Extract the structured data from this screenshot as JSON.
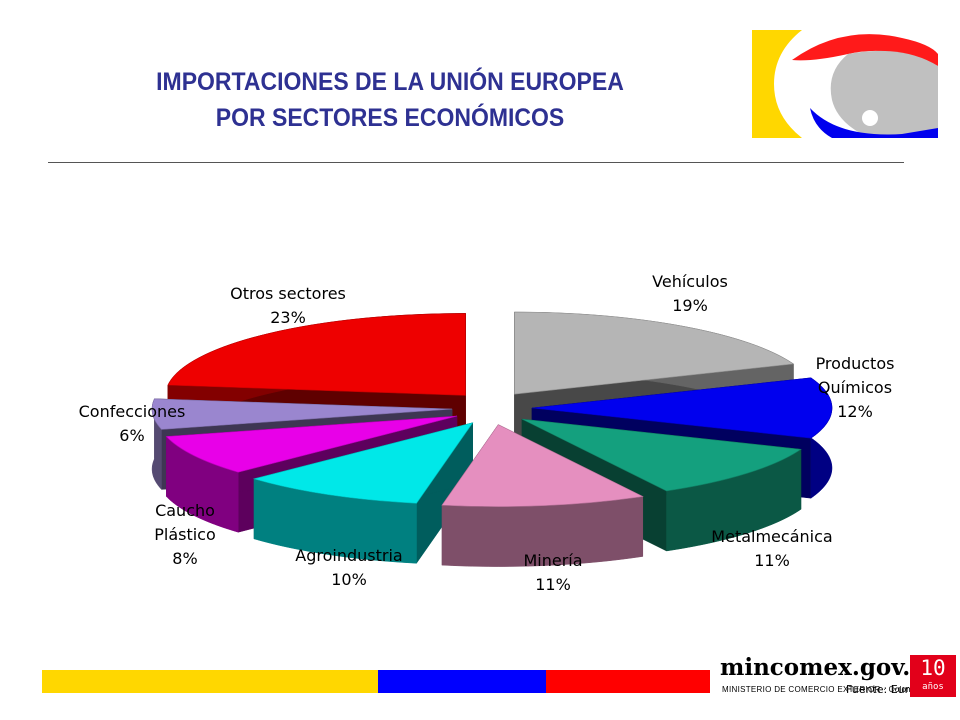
{
  "slide": {
    "title_line1": "IMPORTACIONES DE LA UNIÓN EUROPEA",
    "title_line2": "POR SECTORES ECONÓMICOS"
  },
  "footer": {
    "brand": "mincomex.gov.co",
    "ministry": "MINISTERIO DE COMERCIO EXTERIOR · Colombia",
    "source": "Fuente: Eurostat",
    "badge_number": "10",
    "badge_text": "años",
    "bar_colors": [
      "#ffd700",
      "#0000ff",
      "#ff0000"
    ]
  },
  "chart_data": {
    "type": "pie",
    "title": "",
    "slices": [
      {
        "label": "Vehículos",
        "value": 19,
        "value_label": "19%",
        "color": "#b5b5b5"
      },
      {
        "label": "Productos Químicos",
        "value": 12,
        "value_label": "12%",
        "color": "#0000ee"
      },
      {
        "label": "Metalmecánica",
        "value": 11,
        "value_label": "11%",
        "color": "#14a07e"
      },
      {
        "label": "Minería",
        "value": 11,
        "value_label": "11%",
        "color": "#e58fbf"
      },
      {
        "label": "Agroindustria",
        "value": 10,
        "value_label": "10%",
        "color": "#00e8e8"
      },
      {
        "label": "Caucho Plástico",
        "value": 8,
        "value_label": "8%",
        "color": "#e800e8"
      },
      {
        "label": "Confecciones",
        "value": 6,
        "value_label": "6%",
        "color": "#9a86cf"
      },
      {
        "label": "Otros sectores",
        "value": 23,
        "value_label": "23%",
        "color": "#ee0000"
      }
    ],
    "exploded": true,
    "style": "3d"
  }
}
